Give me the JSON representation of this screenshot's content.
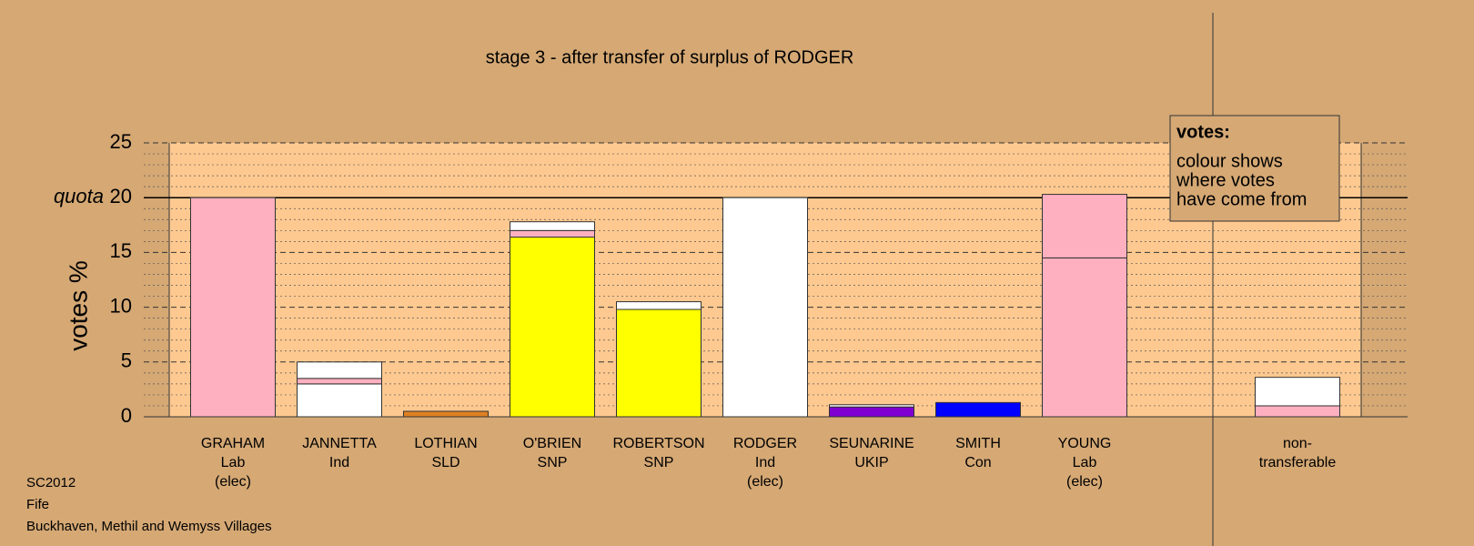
{
  "chart_data": {
    "type": "stacked_bar",
    "title": "stage 3 - after transfer of surplus of RODGER",
    "y_label": "votes %",
    "quota_label": "quota",
    "quota": 20,
    "ylim": [
      0,
      25
    ],
    "yticks": [
      0,
      5,
      10,
      15,
      20,
      25
    ],
    "minor_yticks": [
      1,
      2,
      3,
      4,
      6,
      7,
      8,
      9,
      11,
      12,
      13,
      14,
      16,
      17,
      18,
      19,
      21,
      22,
      23,
      24
    ],
    "legend": {
      "title": "votes:",
      "lines": [
        "colour shows",
        "where votes",
        "have come from"
      ]
    },
    "bars": [
      {
        "label": [
          "GRAHAM",
          "Lab",
          "(elec)"
        ],
        "segments": [
          {
            "value": 20,
            "color": "#ffb0c0"
          }
        ]
      },
      {
        "label": [
          "JANNETTA",
          "Ind"
        ],
        "segments": [
          {
            "value": 3.0,
            "color": "#ffffff"
          },
          {
            "value": 0.5,
            "color": "#ffb0c0"
          },
          {
            "value": 1.5,
            "color": "#ffffff"
          }
        ]
      },
      {
        "label": [
          "LOTHIAN",
          "SLD"
        ],
        "segments": [
          {
            "value": 0.5,
            "color": "#e08020"
          }
        ]
      },
      {
        "label": [
          "O'BRIEN",
          "SNP"
        ],
        "segments": [
          {
            "value": 16.4,
            "color": "#ffff00"
          },
          {
            "value": 0.6,
            "color": "#ffb0c0"
          },
          {
            "value": 0.8,
            "color": "#ffffff"
          }
        ]
      },
      {
        "label": [
          "ROBERTSON",
          "SNP"
        ],
        "segments": [
          {
            "value": 9.8,
            "color": "#ffff00"
          },
          {
            "value": 0.7,
            "color": "#ffffff"
          }
        ]
      },
      {
        "label": [
          "RODGER",
          "Ind",
          "(elec)"
        ],
        "segments": [
          {
            "value": 20,
            "color": "#ffffff"
          }
        ]
      },
      {
        "label": [
          "SEUNARINE",
          "UKIP"
        ],
        "segments": [
          {
            "value": 0.9,
            "color": "#8000d0"
          },
          {
            "value": 0.2,
            "color": "#ffffff"
          }
        ]
      },
      {
        "label": [
          "SMITH",
          "Con"
        ],
        "segments": [
          {
            "value": 1.3,
            "color": "#0000ff"
          }
        ]
      },
      {
        "label": [
          "YOUNG",
          "Lab",
          "(elec)"
        ],
        "segments": [
          {
            "value": 14.5,
            "color": "#ffb0c0"
          },
          {
            "value": 5.8,
            "color": "#ffb0c0"
          }
        ]
      },
      {
        "label": [
          "non-",
          "transferable"
        ],
        "segments": [
          {
            "value": 1.0,
            "color": "#ffb0c0"
          },
          {
            "value": 2.6,
            "color": "#ffffff"
          }
        ]
      }
    ],
    "footer": [
      "SC2012",
      "Fife",
      "Buckhaven, Methil and Wemyss Villages"
    ]
  }
}
